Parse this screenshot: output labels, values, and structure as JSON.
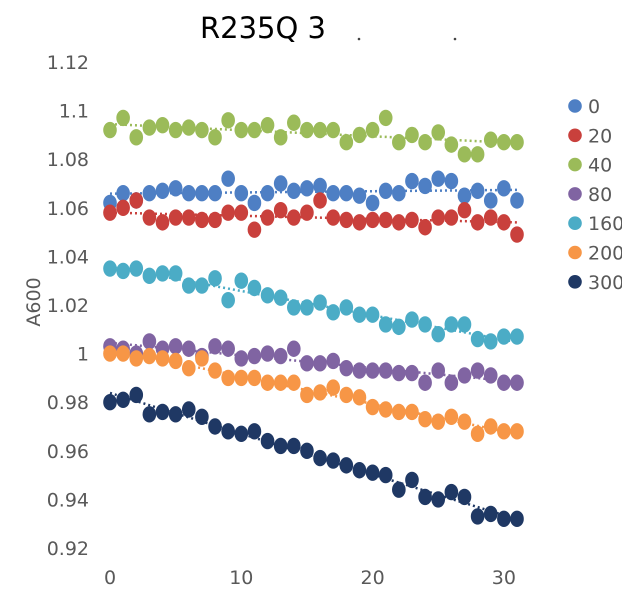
{
  "chart_data": {
    "type": "scatter",
    "title": "R235Q 3",
    "xlabel": "",
    "ylabel": "A600",
    "xlim": [
      0,
      31
    ],
    "ylim": [
      0.92,
      1.12
    ],
    "x_ticks": [
      "0",
      "10",
      "20",
      "30"
    ],
    "y_ticks": [
      "0.92",
      "0.94",
      "0.96",
      "0.98",
      "1",
      "1.02",
      "1.04",
      "1.06",
      "1.08",
      "1.1",
      "1.12"
    ],
    "grid": false,
    "legend_position": "right",
    "trendlines": "dotted",
    "x": [
      0,
      1,
      2,
      3,
      4,
      5,
      6,
      7,
      8,
      9,
      10,
      11,
      12,
      13,
      14,
      15,
      16,
      17,
      18,
      19,
      20,
      21,
      22,
      23,
      24,
      25,
      26,
      27,
      28,
      29,
      30,
      31
    ],
    "series": [
      {
        "name": "0",
        "color": "#4E7FC4",
        "values": [
          1.062,
          1.066,
          1.063,
          1.066,
          1.067,
          1.068,
          1.066,
          1.066,
          1.066,
          1.072,
          1.066,
          1.062,
          1.066,
          1.07,
          1.067,
          1.068,
          1.069,
          1.066,
          1.066,
          1.065,
          1.062,
          1.067,
          1.066,
          1.071,
          1.069,
          1.072,
          1.071,
          1.065,
          1.067,
          1.063,
          1.068,
          1.063
        ]
      },
      {
        "name": "20",
        "color": "#C9403C",
        "values": [
          1.058,
          1.06,
          1.063,
          1.056,
          1.054,
          1.056,
          1.056,
          1.055,
          1.055,
          1.058,
          1.058,
          1.051,
          1.056,
          1.059,
          1.056,
          1.058,
          1.063,
          1.056,
          1.055,
          1.054,
          1.055,
          1.055,
          1.054,
          1.055,
          1.052,
          1.056,
          1.056,
          1.059,
          1.054,
          1.056,
          1.054,
          1.049
        ]
      },
      {
        "name": "40",
        "color": "#9BBB59",
        "values": [
          1.092,
          1.097,
          1.089,
          1.093,
          1.094,
          1.092,
          1.093,
          1.092,
          1.089,
          1.096,
          1.092,
          1.092,
          1.094,
          1.089,
          1.095,
          1.092,
          1.092,
          1.092,
          1.087,
          1.09,
          1.092,
          1.097,
          1.087,
          1.09,
          1.087,
          1.091,
          1.086,
          1.082,
          1.082,
          1.088,
          1.087,
          1.087
        ]
      },
      {
        "name": "80",
        "color": "#8064A2",
        "values": [
          1.003,
          1.002,
          1.0,
          1.005,
          1.002,
          1.003,
          1.002,
          0.999,
          1.003,
          1.002,
          0.998,
          0.999,
          1.0,
          0.999,
          1.002,
          0.996,
          0.996,
          0.997,
          0.994,
          0.993,
          0.993,
          0.993,
          0.992,
          0.992,
          0.988,
          0.993,
          0.988,
          0.991,
          0.993,
          0.991,
          0.988,
          0.988
        ]
      },
      {
        "name": "160",
        "color": "#4BACC6",
        "values": [
          1.035,
          1.034,
          1.035,
          1.032,
          1.033,
          1.033,
          1.028,
          1.028,
          1.031,
          1.022,
          1.03,
          1.027,
          1.024,
          1.023,
          1.019,
          1.019,
          1.021,
          1.017,
          1.019,
          1.016,
          1.016,
          1.012,
          1.011,
          1.014,
          1.012,
          1.008,
          1.012,
          1.012,
          1.006,
          1.005,
          1.007,
          1.007
        ]
      },
      {
        "name": "200",
        "color": "#F79646",
        "values": [
          1.0,
          1.0,
          0.998,
          0.999,
          0.998,
          0.997,
          0.994,
          0.998,
          0.993,
          0.99,
          0.99,
          0.99,
          0.988,
          0.988,
          0.988,
          0.983,
          0.984,
          0.986,
          0.983,
          0.982,
          0.978,
          0.977,
          0.976,
          0.976,
          0.973,
          0.972,
          0.974,
          0.972,
          0.967,
          0.97,
          0.968,
          0.968
        ]
      },
      {
        "name": "300",
        "color": "#1F3864",
        "values": [
          0.98,
          0.981,
          0.983,
          0.975,
          0.976,
          0.975,
          0.977,
          0.974,
          0.97,
          0.968,
          0.967,
          0.968,
          0.964,
          0.962,
          0.962,
          0.96,
          0.957,
          0.956,
          0.954,
          0.952,
          0.951,
          0.95,
          0.944,
          0.948,
          0.941,
          0.94,
          0.943,
          0.941,
          0.933,
          0.934,
          0.932,
          0.932
        ]
      }
    ]
  }
}
